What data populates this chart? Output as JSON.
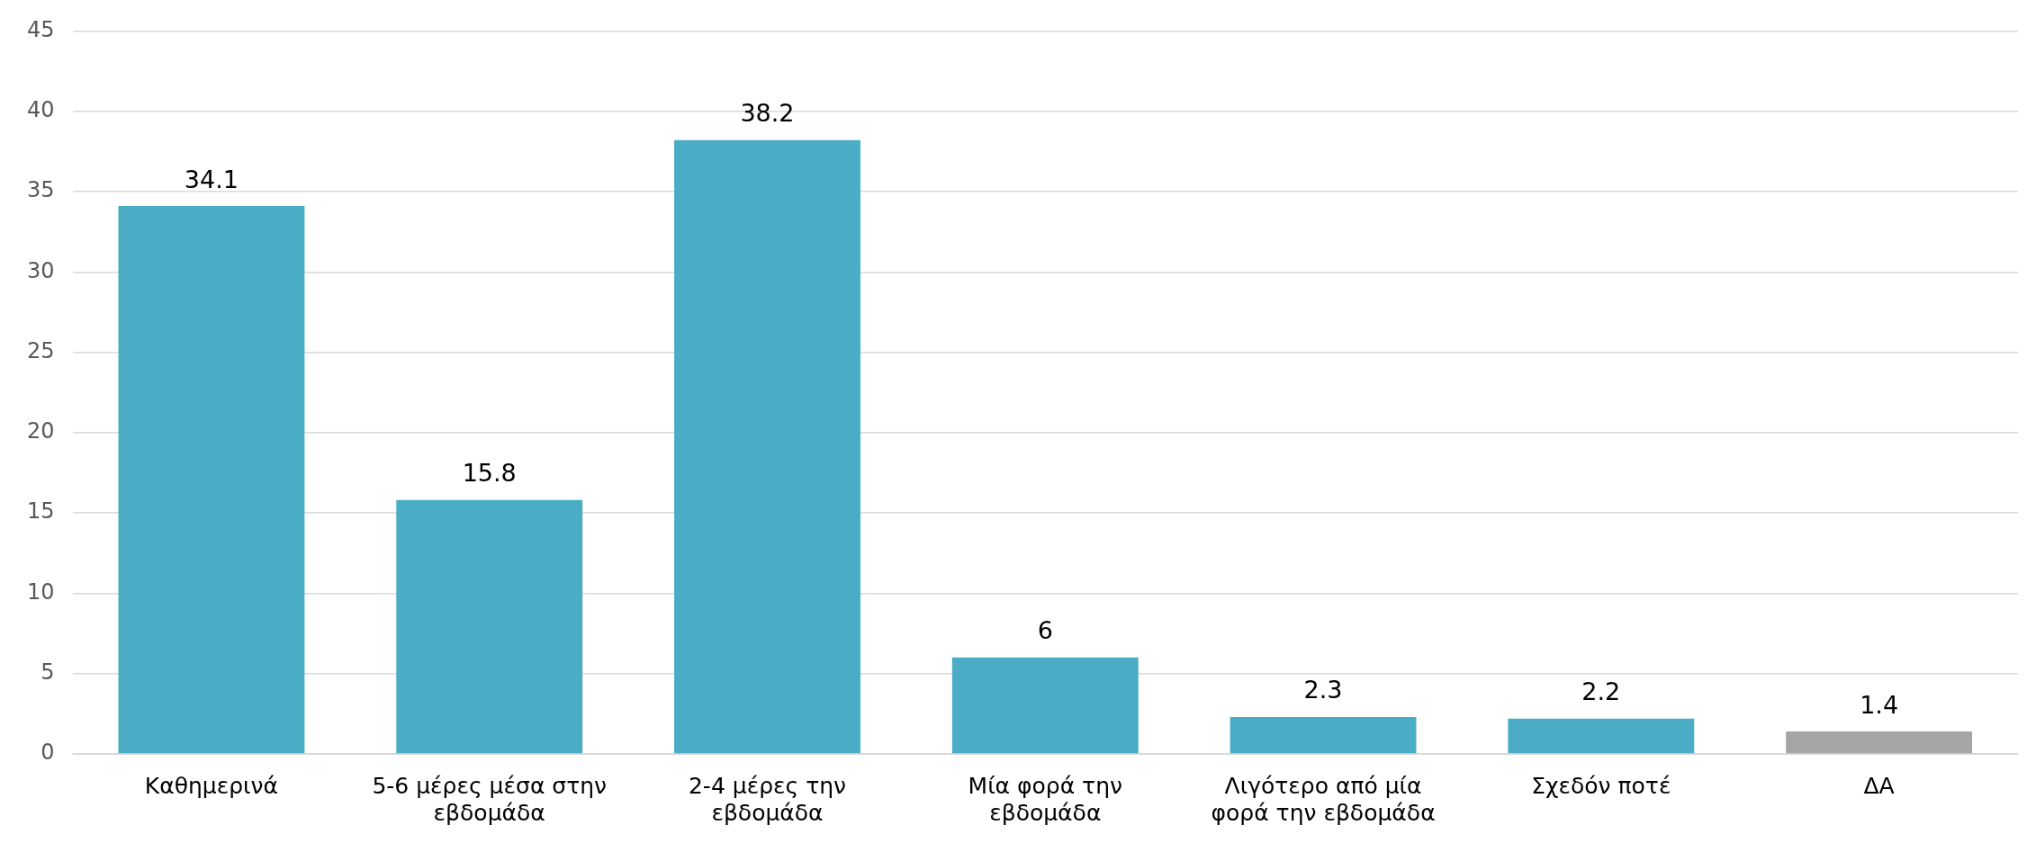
{
  "chart_data": {
    "type": "bar",
    "categories": [
      "Καθημερινά",
      "5-6 μέρες μέσα στην εβδομάδα",
      "2-4 μέρες την εβδομάδα",
      "Μία φορά την εβδομάδα",
      "Λιγότερο από μία φορά την εβδομάδα",
      "Σχεδόν ποτέ",
      "ΔΑ"
    ],
    "values": [
      34.1,
      15.8,
      38.2,
      6,
      2.3,
      2.2,
      1.4
    ],
    "colors": [
      "#4bacc6",
      "#4bacc6",
      "#4bacc6",
      "#4bacc6",
      "#4bacc6",
      "#4bacc6",
      "#a5a5a5"
    ],
    "ylim": [
      0,
      45
    ],
    "yticks": [
      0,
      5,
      10,
      15,
      20,
      25,
      30,
      35,
      40,
      45
    ],
    "grid": "y",
    "legend": false,
    "data_labels": true
  }
}
